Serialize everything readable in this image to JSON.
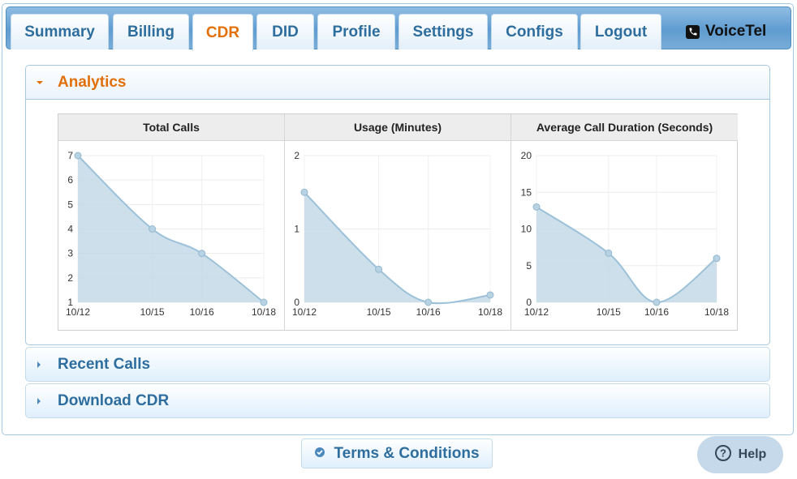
{
  "nav": {
    "tabs": [
      {
        "label": "Summary"
      },
      {
        "label": "Billing"
      },
      {
        "label": "CDR"
      },
      {
        "label": "DID"
      },
      {
        "label": "Profile"
      },
      {
        "label": "Settings"
      },
      {
        "label": "Configs"
      },
      {
        "label": "Logout"
      }
    ],
    "active_tab": "CDR",
    "brand": "VoiceTel",
    "brand_icon": "phone-icon"
  },
  "accordion": {
    "analytics": {
      "label": "Analytics",
      "expanded": true,
      "icon": "triangle-down-icon"
    },
    "recent_calls": {
      "label": "Recent Calls",
      "expanded": false,
      "icon": "triangle-right-icon"
    },
    "download_cdr": {
      "label": "Download CDR",
      "expanded": false,
      "icon": "triangle-right-icon"
    }
  },
  "colors": {
    "accent_orange": "#e17009",
    "link_blue": "#2e6e9e",
    "area_fill": "#c3d9e6",
    "area_line": "#9cc1d8"
  },
  "chart_data": [
    {
      "type": "area",
      "title": "Total Calls",
      "x": [
        "10/12",
        "10/15",
        "10/16",
        "10/18"
      ],
      "values": [
        7,
        4,
        3,
        1
      ],
      "ylim": [
        1,
        7
      ],
      "yticks": [
        1,
        2,
        3,
        4,
        5,
        6,
        7
      ],
      "grid": true
    },
    {
      "type": "area",
      "title": "Usage (Minutes)",
      "x": [
        "10/12",
        "10/15",
        "10/16",
        "10/18"
      ],
      "values": [
        1.5,
        0.45,
        0,
        0.1
      ],
      "ylim": [
        0,
        2
      ],
      "yticks": [
        0,
        1,
        2
      ],
      "grid": true
    },
    {
      "type": "area",
      "title": "Average Call Duration (Seconds)",
      "x": [
        "10/12",
        "10/15",
        "10/16",
        "10/18"
      ],
      "values": [
        13,
        6.7,
        0,
        6
      ],
      "ylim": [
        0,
        20
      ],
      "yticks": [
        0,
        5,
        10,
        15,
        20
      ],
      "grid": true
    }
  ],
  "footer": {
    "terms_label": "Terms & Conditions",
    "terms_icon": "check-circle-icon",
    "help_label": "Help",
    "help_icon": "question-circle-icon"
  }
}
